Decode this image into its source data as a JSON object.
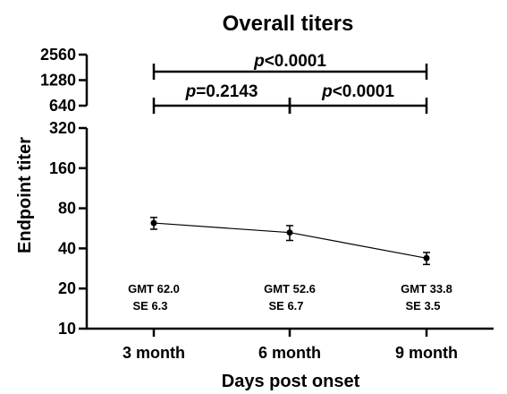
{
  "chart_data": {
    "type": "line",
    "title": "Overall titers",
    "xlabel": "Days post onset",
    "ylabel": "Endpoint titer",
    "yscale": "log2",
    "ylim": [
      10,
      2560
    ],
    "y_ticks_lower": [
      "10",
      "20",
      "40",
      "80",
      "160",
      "320"
    ],
    "y_tick_values_lower": [
      10,
      20,
      40,
      80,
      160,
      320
    ],
    "y_ticks_upper": [
      "640",
      "1280",
      "2560"
    ],
    "y_tick_values_upper": [
      640,
      1280,
      2560
    ],
    "axis_break_between": [
      320,
      640
    ],
    "categories": [
      "3 month",
      "6 month",
      "9 month"
    ],
    "series": [
      {
        "values": [
          62.0,
          52.6,
          33.8
        ],
        "error": [
          6.3,
          6.7,
          3.5
        ]
      }
    ],
    "annotations": [
      {
        "category": "3 month",
        "gmt": "GMT 62.0",
        "se": "SE 6.3"
      },
      {
        "category": "6 month",
        "gmt": "GMT 52.6",
        "se": "SE 6.7"
      },
      {
        "category": "9 month",
        "gmt": "GMT 33.8",
        "se": "SE 3.5"
      }
    ],
    "comparisons": [
      {
        "from": "3 month",
        "to": "9 month",
        "label": "<0.0001"
      },
      {
        "from": "3 month",
        "to": "6 month",
        "label": "=0.2143"
      },
      {
        "from": "6 month",
        "to": "9 month",
        "label": "<0.0001"
      }
    ],
    "p_symbol": "p",
    "grid": false,
    "legend": "none"
  }
}
